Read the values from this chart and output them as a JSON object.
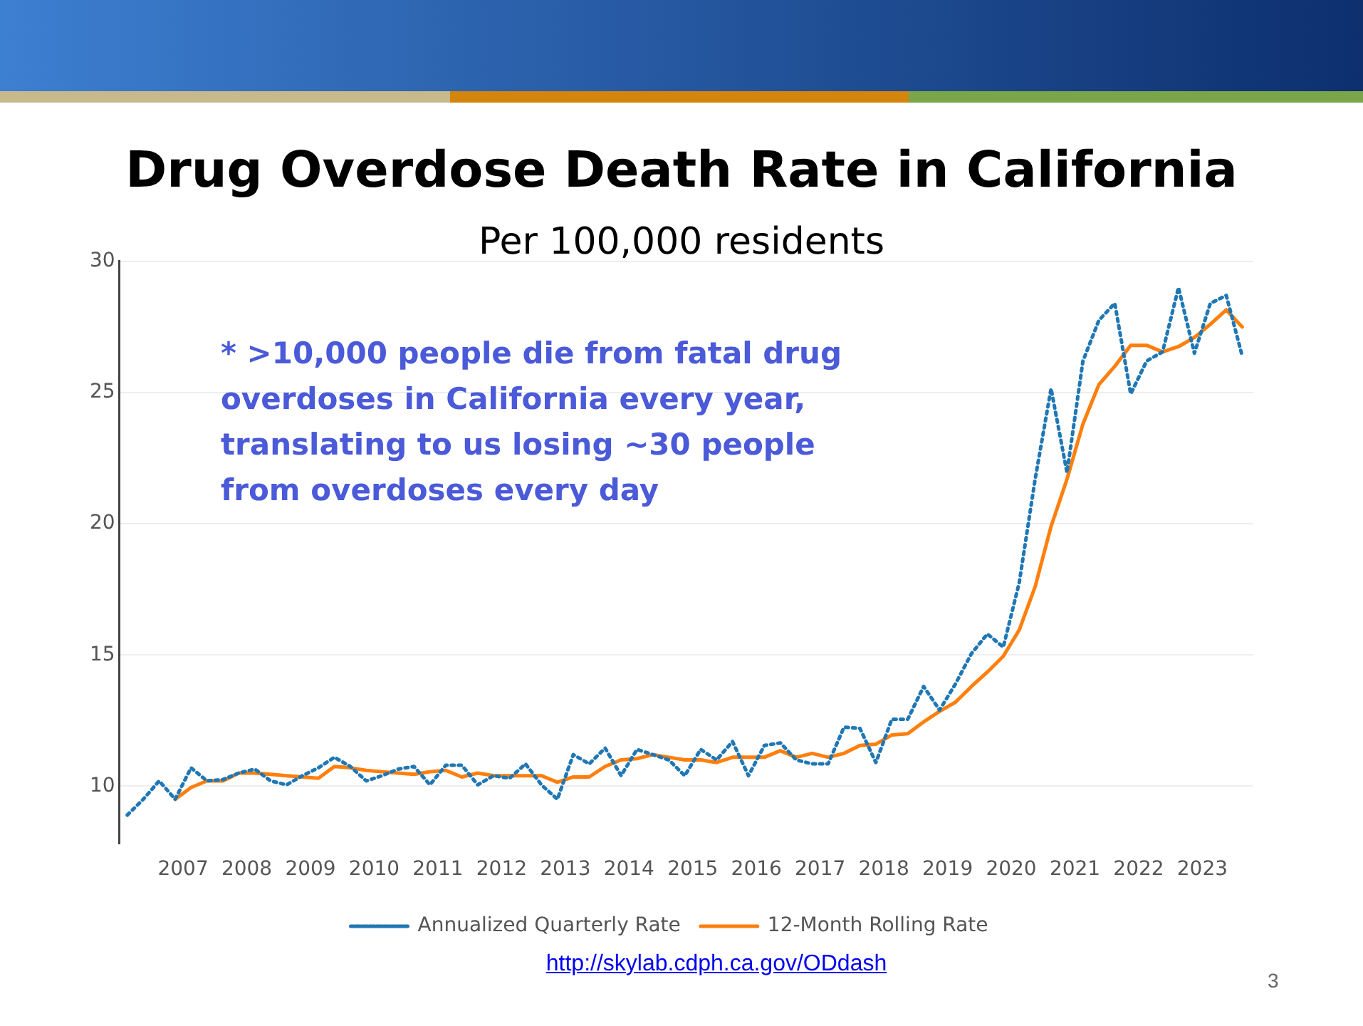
{
  "chart_data": {
    "type": "line",
    "title": "Drug Overdose Death Rate in California",
    "subtitle": "Per 100,000 residents",
    "annotations": [
      "* >10,000 people die from fatal drug overdoses in California every year, translating to us losing ~30 people from overdoses every day",
      "http://skylab.cdph.ca.gov/ODdash",
      "3"
    ],
    "x": [
      2006.125,
      2006.375,
      2006.625,
      2006.875,
      2007.125,
      2007.375,
      2007.625,
      2007.875,
      2008.125,
      2008.375,
      2008.625,
      2008.875,
      2009.125,
      2009.375,
      2009.625,
      2009.875,
      2010.125,
      2010.375,
      2010.625,
      2010.875,
      2011.125,
      2011.375,
      2011.625,
      2011.875,
      2012.125,
      2012.375,
      2012.625,
      2012.875,
      2013.125,
      2013.375,
      2013.625,
      2013.875,
      2014.125,
      2014.375,
      2014.625,
      2014.875,
      2015.125,
      2015.375,
      2015.625,
      2015.875,
      2016.125,
      2016.375,
      2016.625,
      2016.875,
      2017.125,
      2017.375,
      2017.625,
      2017.875,
      2018.125,
      2018.375,
      2018.625,
      2018.875,
      2019.125,
      2019.375,
      2019.625,
      2019.875,
      2020.125,
      2020.375,
      2020.625,
      2020.875,
      2021.125,
      2021.375,
      2021.625,
      2021.875,
      2022.125,
      2022.375,
      2022.625,
      2022.875,
      2023.125,
      2023.375,
      2023.625
    ],
    "series": [
      {
        "name": "Annualized Quarterly Rate",
        "color": "#1f77b4",
        "line_style": "dotted",
        "values": [
          8.9,
          9.5,
          10.2,
          9.5,
          10.7,
          10.2,
          10.25,
          10.5,
          10.65,
          10.2,
          10.05,
          10.4,
          10.7,
          11.1,
          10.75,
          10.2,
          10.4,
          10.65,
          10.75,
          10.05,
          10.8,
          10.8,
          10.05,
          10.4,
          10.3,
          10.85,
          10.05,
          9.5,
          11.2,
          10.85,
          11.45,
          10.4,
          11.4,
          11.2,
          11.0,
          10.4,
          11.4,
          11.0,
          11.7,
          10.4,
          11.55,
          11.65,
          11.0,
          10.85,
          10.85,
          12.25,
          12.2,
          10.9,
          12.55,
          12.55,
          13.8,
          12.9,
          13.9,
          15.05,
          15.8,
          15.3,
          17.75,
          21.7,
          25.15,
          21.95,
          26.2,
          27.75,
          28.4,
          24.95,
          26.2,
          26.55,
          29.0,
          26.5,
          28.4,
          28.7,
          26.4
        ]
      },
      {
        "name": "12-Month Rolling Rate",
        "color": "#ff7f0e",
        "line_style": "solid",
        "values": [
          null,
          null,
          null,
          9.5,
          9.95,
          10.2,
          10.2,
          10.5,
          10.5,
          10.45,
          10.4,
          10.35,
          10.3,
          10.75,
          10.7,
          10.6,
          10.55,
          10.5,
          10.45,
          10.55,
          10.6,
          10.35,
          10.5,
          10.4,
          10.4,
          10.4,
          10.4,
          10.15,
          10.35,
          10.35,
          10.75,
          11.0,
          11.05,
          11.2,
          11.1,
          11.0,
          11.0,
          10.9,
          11.1,
          11.1,
          11.1,
          11.35,
          11.1,
          11.25,
          11.1,
          11.25,
          11.55,
          11.6,
          11.95,
          12.0,
          12.45,
          12.85,
          13.2,
          13.8,
          14.35,
          14.95,
          15.95,
          17.6,
          19.9,
          21.7,
          23.8,
          25.3,
          26.0,
          26.8,
          26.8,
          26.55,
          26.75,
          27.1,
          27.6,
          28.15,
          27.5
        ]
      }
    ],
    "xlim": [
      2006,
      2023.8
    ],
    "xticks": [
      2007,
      2008,
      2009,
      2010,
      2011,
      2012,
      2013,
      2014,
      2015,
      2016,
      2017,
      2018,
      2019,
      2020,
      2021,
      2022,
      2023
    ],
    "ylim": [
      7.8,
      30
    ],
    "yticks": [
      10,
      15,
      20,
      25,
      30
    ],
    "grid": "y",
    "legend": "bottom",
    "marker": "none"
  }
}
